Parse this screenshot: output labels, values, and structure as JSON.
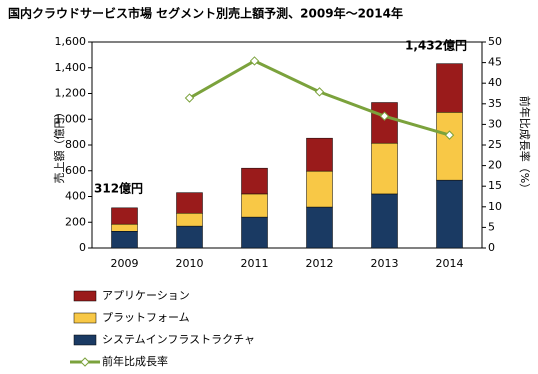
{
  "chart_data": {
    "type": "stacked-bar-line",
    "title": "国内クラウドサービス市場 セグメント別売上額予測、2009年～2014年",
    "ylabel": "売上額（億円）",
    "y2label": "前年比成長率（%）",
    "categories": [
      "2009",
      "2010",
      "2011",
      "2012",
      "2013",
      "2014"
    ],
    "series": [
      {
        "name": "システムインフラストラクチャ",
        "color": "#1a3a63",
        "values": [
          130,
          170,
          240,
          318,
          420,
          527
        ]
      },
      {
        "name": "プラットフォーム",
        "color": "#f8c846",
        "values": [
          55,
          100,
          180,
          279,
          394,
          527
        ]
      },
      {
        "name": "アプリケーション",
        "color": "#9a1b1b",
        "values": [
          127,
          160,
          200,
          256,
          316,
          378
        ]
      },
      {
        "name": "前年比成長率",
        "color": "#7ba23c",
        "axis": "y2",
        "values": [
          null,
          36.4,
          45.4,
          37.9,
          32,
          27.4
        ]
      }
    ],
    "annotations": [
      "312億円",
      "1,432億円"
    ],
    "ylim": [
      0,
      1600
    ],
    "yticks": [
      0,
      200,
      400,
      600,
      800,
      {
        "value": 1000,
        "label": "1,000"
      },
      {
        "value": 1200,
        "label": "1,200"
      },
      {
        "value": 1400,
        "label": "1,400"
      },
      {
        "value": 1600,
        "label": "1,600"
      }
    ],
    "y2lim": [
      0,
      50
    ],
    "y2ticks": [
      0,
      5,
      10,
      15,
      20,
      25,
      30,
      35,
      40,
      45,
      50
    ]
  }
}
